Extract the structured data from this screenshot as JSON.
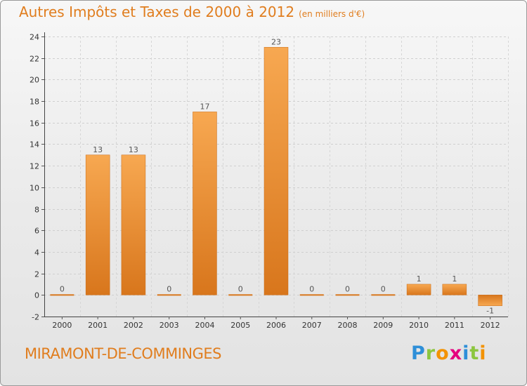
{
  "title": "Autres Impôts et Taxes de 2000 à 2012",
  "subtitle": "(en milliers d'€)",
  "commune": "MIRAMONT-DE-COMMINGES",
  "logo": {
    "p": "P",
    "r": "r",
    "o": "o",
    "x": "x",
    "i": "i",
    "t": "t",
    "i2": "i"
  },
  "colors": {
    "accent": "#e07d1e",
    "bar_light": "#f6a24a",
    "bar_dark": "#d9781d"
  },
  "chart_data": {
    "type": "bar",
    "title": "Autres Impôts et Taxes de 2000 à 2012",
    "subtitle": "(en milliers d'€)",
    "xlabel": "",
    "ylabel": "",
    "categories": [
      "2000",
      "2001",
      "2002",
      "2003",
      "2004",
      "2005",
      "2006",
      "2007",
      "2008",
      "2009",
      "2010",
      "2011",
      "2012"
    ],
    "values": [
      0,
      13,
      13,
      0,
      17,
      0,
      23,
      0,
      0,
      0,
      1,
      1,
      -1
    ],
    "value_labels": [
      "0",
      "13",
      "13",
      "0",
      "17",
      "0",
      "23",
      "0",
      "0",
      "0",
      "1",
      "1",
      "-1"
    ],
    "yticks": [
      "-2",
      "0",
      "2",
      "4",
      "6",
      "8",
      "10",
      "12",
      "14",
      "16",
      "18",
      "20",
      "22",
      "24"
    ],
    "ylim": [
      -2,
      24
    ],
    "grid": true
  }
}
